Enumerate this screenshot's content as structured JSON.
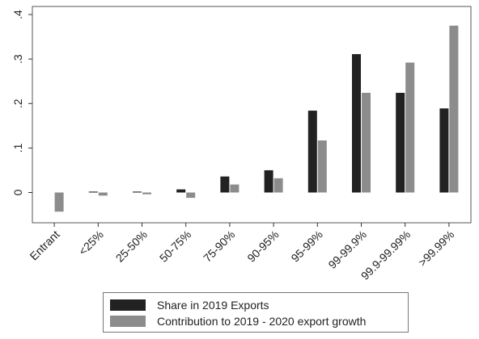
{
  "chart_data": {
    "type": "bar",
    "categories": [
      "Entrant",
      "<25%",
      "25-50%",
      "50-75%",
      "75-90%",
      "90-95%",
      "95-99%",
      "99-99.9%",
      "99.9-99.99%",
      ">99.99%"
    ],
    "series": [
      {
        "name": "Share in 2019 Exports",
        "color": "#222222",
        "values": [
          0,
          0.002,
          0.002,
          0.007,
          0.036,
          0.05,
          0.184,
          0.311,
          0.224,
          0.189
        ]
      },
      {
        "name": "Contribution to 2019 - 2020 export growth",
        "color": "#8c8c8c",
        "values": [
          -0.043,
          -0.007,
          -0.004,
          -0.012,
          0.018,
          0.032,
          0.117,
          0.224,
          0.292,
          0.375
        ]
      }
    ],
    "yticks": [
      0,
      0.1,
      0.2,
      0.3,
      0.4
    ],
    "ytick_labels": [
      "0",
      ".1",
      ".2",
      ".3",
      ".4"
    ],
    "ylim": [
      -0.05,
      0.4
    ],
    "grid": false,
    "legend_position": "bottom"
  }
}
